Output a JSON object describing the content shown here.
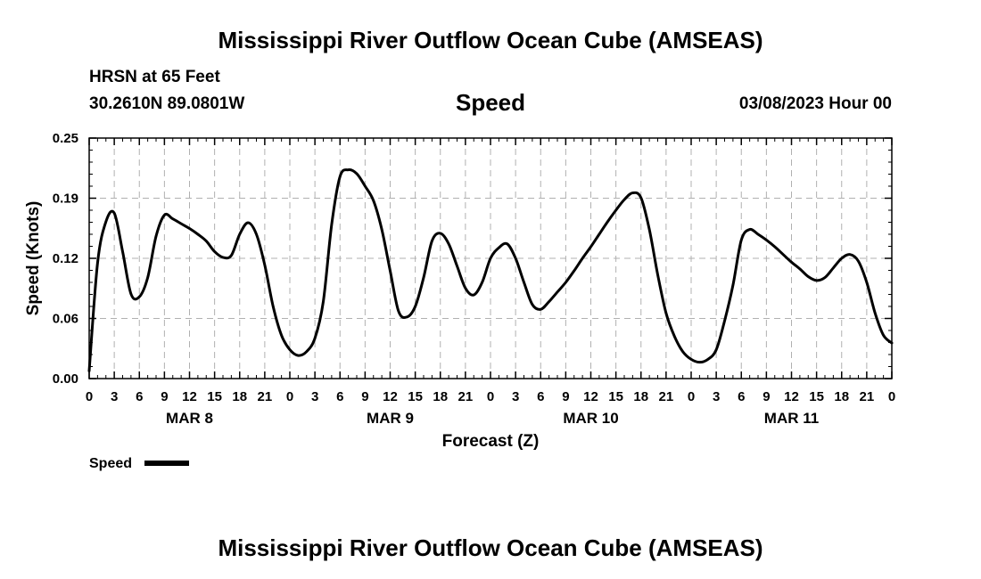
{
  "header": {
    "title_top": "Mississippi River Outflow Ocean Cube (AMSEAS)",
    "station": "HRSN at 65 Feet",
    "coords": "30.2610N  89.0801W",
    "chart_title": "Speed",
    "datetime": "03/08/2023 Hour 00",
    "title_bottom": "Mississippi River Outflow Ocean Cube (AMSEAS)"
  },
  "legend": {
    "label": "Speed"
  },
  "colors": {
    "line": "#000000",
    "grid": "#b0b0b0",
    "background": "#ffffff"
  },
  "chart_data": {
    "type": "line",
    "title": "Speed",
    "xlabel": "Forecast (Z)",
    "ylabel": "Speed (Knots)",
    "xlim": [
      0,
      96
    ],
    "ylim": [
      0,
      0.25
    ],
    "y_ticks": [
      "0.00",
      "0.06",
      "0.12",
      "0.19",
      "0.25"
    ],
    "y_tick_values": [
      0,
      0.0625,
      0.125,
      0.1875,
      0.25
    ],
    "x_ticks": [
      "0",
      "3",
      "6",
      "9",
      "12",
      "15",
      "18",
      "21",
      "0",
      "3",
      "6",
      "9",
      "12",
      "15",
      "18",
      "21",
      "0",
      "3",
      "6",
      "9",
      "12",
      "15",
      "18",
      "21",
      "0",
      "3",
      "6",
      "9",
      "12",
      "15",
      "18",
      "21",
      "0"
    ],
    "day_labels": [
      {
        "label": "MAR 8",
        "hour": 12
      },
      {
        "label": "MAR 9",
        "hour": 36
      },
      {
        "label": "MAR 10",
        "hour": 60
      },
      {
        "label": "MAR 11",
        "hour": 84
      }
    ],
    "grid": true,
    "legend_position": "bottom-left",
    "series": [
      {
        "name": "Speed",
        "x": [
          0,
          1,
          2,
          3,
          4,
          5,
          6,
          7,
          8,
          9,
          10,
          11,
          12,
          13,
          14,
          15,
          16,
          17,
          18,
          19,
          20,
          21,
          22,
          23,
          24,
          25,
          26,
          27,
          28,
          29,
          30,
          31,
          32,
          33,
          34,
          35,
          36,
          37,
          38,
          39,
          40,
          41,
          42,
          43,
          44,
          45,
          46,
          47,
          48,
          49,
          50,
          51,
          52,
          53,
          54,
          55,
          56,
          57,
          58,
          59,
          60,
          61,
          62,
          63,
          64,
          65,
          66,
          67,
          68,
          69,
          70,
          71,
          72,
          73,
          74,
          75,
          76,
          77,
          78,
          79,
          80,
          81,
          82,
          83,
          84,
          85,
          86,
          87,
          88,
          89,
          90,
          91,
          92,
          93,
          94,
          95,
          96
        ],
        "values": [
          0.008,
          0.12,
          0.163,
          0.172,
          0.132,
          0.088,
          0.085,
          0.105,
          0.148,
          0.17,
          0.166,
          0.161,
          0.156,
          0.15,
          0.143,
          0.132,
          0.126,
          0.128,
          0.15,
          0.162,
          0.15,
          0.118,
          0.075,
          0.045,
          0.03,
          0.024,
          0.028,
          0.042,
          0.08,
          0.16,
          0.21,
          0.217,
          0.213,
          0.2,
          0.185,
          0.155,
          0.112,
          0.07,
          0.064,
          0.075,
          0.105,
          0.143,
          0.151,
          0.14,
          0.117,
          0.094,
          0.087,
          0.1,
          0.125,
          0.136,
          0.14,
          0.125,
          0.1,
          0.077,
          0.072,
          0.08,
          0.09,
          0.1,
          0.112,
          0.125,
          0.137,
          0.15,
          0.163,
          0.175,
          0.186,
          0.193,
          0.188,
          0.155,
          0.108,
          0.068,
          0.044,
          0.028,
          0.02,
          0.017,
          0.02,
          0.03,
          0.06,
          0.097,
          0.144,
          0.155,
          0.15,
          0.144,
          0.137,
          0.129,
          0.121,
          0.114,
          0.106,
          0.102,
          0.105,
          0.115,
          0.125,
          0.129,
          0.122,
          0.1,
          0.068,
          0.045,
          0.037
        ]
      }
    ]
  }
}
